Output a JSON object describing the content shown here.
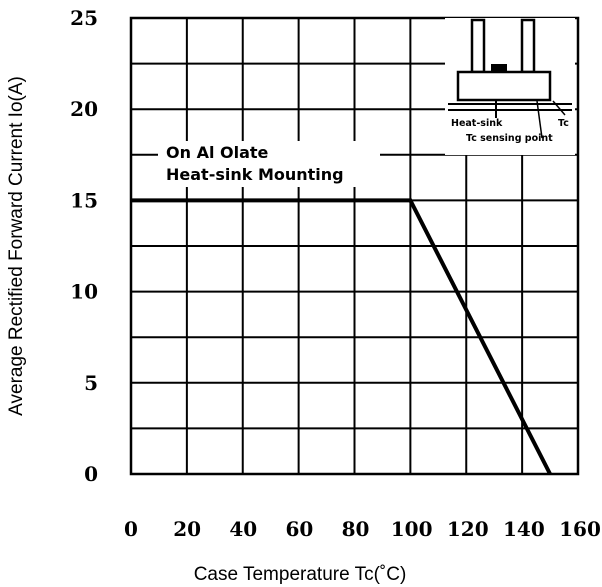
{
  "chart_data": {
    "type": "line",
    "xlabel": "Case Temperature Tc(˚C)",
    "ylabel": "Average Rectified Forward Current Io(A)",
    "xlim": [
      0,
      160
    ],
    "ylim": [
      0,
      25
    ],
    "x_ticks": [
      "0",
      "20",
      "40",
      "60",
      "80",
      "100",
      "120",
      "140",
      "160"
    ],
    "y_ticks": [
      "0",
      "5",
      "10",
      "15",
      "20",
      "25"
    ],
    "grid": true,
    "series": [
      {
        "x": [
          0,
          100,
          150
        ],
        "y": [
          15,
          15,
          0
        ]
      }
    ],
    "annotations": {
      "mounting_line1": "On Al Olate",
      "mounting_line2": "Heat-sink Mounting",
      "inset_heat_sink": "Heat-sink",
      "inset_tc": "Tc",
      "inset_sensing_point": "Tc sensing point"
    }
  }
}
